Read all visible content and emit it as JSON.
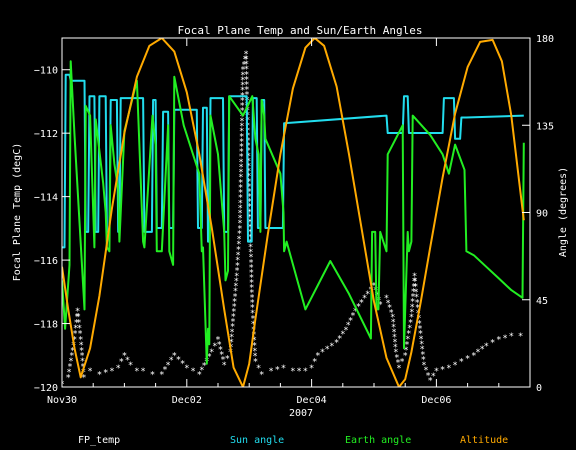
{
  "chart_data": {
    "type": "line",
    "title": "Focal Plane Temp and Sun/Earth Angles",
    "xlabel": "2007",
    "ylabel_left": "Focal Plane Temp (degC)",
    "ylabel_right": "Angle (degrees)",
    "xlim": [
      0,
      7.5
    ],
    "ylim_left": [
      -120,
      -109
    ],
    "ylim_right": [
      0,
      180
    ],
    "x_ticks": [
      {
        "value": 0,
        "label": "Nov30"
      },
      {
        "value": 2,
        "label": "Dec02"
      },
      {
        "value": 4,
        "label": "Dec04"
      },
      {
        "value": 6,
        "label": "Dec06"
      }
    ],
    "y_ticks_left": [
      -110,
      -112,
      -114,
      -116,
      -118,
      -120
    ],
    "y_ticks_right": [
      0,
      45,
      90,
      135,
      180
    ],
    "grid": false,
    "legend_placement": "bottom",
    "series": [
      {
        "name": "FP_temp",
        "axis": "left",
        "color": "#ffffff",
        "style": "points",
        "x": [
          0,
          0.1,
          0.2,
          0.25,
          0.3,
          0.35,
          0.45,
          0.6,
          0.8,
          0.9,
          1.0,
          1.1,
          1.2,
          1.3,
          1.45,
          1.6,
          1.8,
          2.0,
          2.2,
          2.4,
          2.5,
          2.6,
          2.7,
          2.8,
          2.85,
          2.9,
          2.95,
          3.0,
          3.05,
          3.1,
          3.2,
          3.35,
          3.55,
          3.7,
          3.9,
          4.0,
          4.1,
          4.25,
          4.4,
          4.55,
          4.7,
          4.85,
          5.0,
          5.1,
          5.2,
          5.3,
          5.35,
          5.4,
          5.5,
          5.6,
          5.65,
          5.7,
          5.8,
          5.9,
          6.0,
          6.2,
          6.4,
          6.6,
          6.8,
          7.0,
          7.2,
          7.35
        ],
        "y": [
          -119.9,
          -119.7,
          -118.5,
          -117.6,
          -118.5,
          -119.7,
          -119.5,
          -119.6,
          -119.5,
          -119.4,
          -119.0,
          -119.3,
          -119.5,
          -119.5,
          -119.6,
          -119.6,
          -119.0,
          -119.4,
          -119.6,
          -118.9,
          -118.5,
          -119.3,
          -118.9,
          -116.5,
          -115.0,
          -110.0,
          -109.5,
          -114.0,
          -117.5,
          -119.2,
          -119.6,
          -119.5,
          -119.4,
          -119.5,
          -119.5,
          -119.4,
          -119.0,
          -118.8,
          -118.6,
          -118.2,
          -117.6,
          -117.2,
          -116.8,
          -117.4,
          -117.2,
          -117.8,
          -118.9,
          -119.4,
          -119.0,
          -117.8,
          -116.5,
          -117.5,
          -119.3,
          -119.8,
          -119.5,
          -119.4,
          -119.2,
          -119.0,
          -118.7,
          -118.5,
          -118.4,
          -118.4
        ]
      },
      {
        "name": "Sun angle",
        "axis": "right",
        "color": "#22ddee",
        "style": "line",
        "x": [
          0,
          0.04,
          0.06,
          0.12,
          0.14,
          0.36,
          0.38,
          0.42,
          0.44,
          0.52,
          0.54,
          0.58,
          0.6,
          0.7,
          0.72,
          0.76,
          0.78,
          0.88,
          0.9,
          0.92,
          0.94,
          1.3,
          1.32,
          1.44,
          1.46,
          1.5,
          1.52,
          1.6,
          1.62,
          1.7,
          1.72,
          1.78,
          1.8,
          2.16,
          2.18,
          2.24,
          2.26,
          2.32,
          2.34,
          2.36,
          2.38,
          2.58,
          2.6,
          2.66,
          2.68,
          2.96,
          2.98,
          3.04,
          3.06,
          3.12,
          3.14,
          3.18,
          3.2,
          3.24,
          3.26,
          3.54,
          3.56,
          5.2,
          5.22,
          5.46,
          5.48,
          5.54,
          5.56,
          6.1,
          6.12,
          6.28,
          6.3,
          6.38,
          6.4,
          6.46,
          6.48,
          7.4
        ],
        "y": [
          72,
          72,
          161,
          161,
          158,
          158,
          80,
          80,
          150,
          150,
          80,
          80,
          150,
          150,
          80,
          80,
          148,
          148,
          80,
          80,
          149,
          149,
          80,
          80,
          148,
          148,
          82,
          82,
          142,
          142,
          82,
          82,
          143,
          143,
          82,
          82,
          144,
          144,
          75,
          75,
          149,
          149,
          80,
          80,
          150,
          150,
          75,
          75,
          149,
          149,
          82,
          82,
          148,
          148,
          82,
          82,
          136,
          140,
          131,
          131,
          150,
          150,
          131,
          131,
          149,
          149,
          128,
          128,
          139,
          139,
          139,
          140
        ]
      },
      {
        "name": "Earth angle",
        "axis": "right",
        "color": "#22ee22",
        "style": "line",
        "x": [
          0,
          0.05,
          0.12,
          0.14,
          0.2,
          0.36,
          0.38,
          0.45,
          0.52,
          0.54,
          0.66,
          0.7,
          0.72,
          0.76,
          0.78,
          0.84,
          0.9,
          0.92,
          1.0,
          1.2,
          1.3,
          1.32,
          1.45,
          1.5,
          1.52,
          1.6,
          1.7,
          1.72,
          1.78,
          1.8,
          1.95,
          2.1,
          2.2,
          2.24,
          2.26,
          2.32,
          2.34,
          2.36,
          2.38,
          2.5,
          2.6,
          2.62,
          2.66,
          2.68,
          2.9,
          3.05,
          3.1,
          3.15,
          3.18,
          3.2,
          3.24,
          3.26,
          3.5,
          3.55,
          3.56,
          3.6,
          3.9,
          4.3,
          4.6,
          4.95,
          4.97,
          5.02,
          5.04,
          5.07,
          5.1,
          5.2,
          5.22,
          5.46,
          5.48,
          5.54,
          5.56,
          5.6,
          5.62,
          5.9,
          6.1,
          6.2,
          6.3,
          6.45,
          6.48,
          6.6,
          6.8,
          7.0,
          7.2,
          7.38,
          7.4
        ],
        "y": [
          55,
          30,
          63,
          168,
          130,
          40,
          145,
          140,
          72,
          138,
          105,
          90,
          72,
          70,
          135,
          115,
          102,
          75,
          132,
          158,
          75,
          72,
          140,
          125,
          70,
          70,
          135,
          70,
          63,
          160,
          135,
          120,
          110,
          70,
          72,
          12,
          30,
          22,
          140,
          120,
          80,
          55,
          60,
          150,
          140,
          150,
          128,
          120,
          80,
          148,
          140,
          128,
          110,
          90,
          70,
          75,
          40,
          65,
          48,
          25,
          80,
          80,
          40,
          40,
          80,
          70,
          120,
          135,
          20,
          80,
          70,
          75,
          140,
          130,
          120,
          110,
          125,
          112,
          70,
          68,
          62,
          56,
          50,
          46,
          126
        ]
      },
      {
        "name": "Altitude",
        "axis": "right",
        "color": "#ffaa00",
        "style": "line",
        "x": [
          0,
          0.1,
          0.2,
          0.3,
          0.45,
          0.6,
          0.8,
          1.0,
          1.2,
          1.4,
          1.6,
          1.8,
          2.0,
          2.2,
          2.4,
          2.6,
          2.75,
          2.9,
          3.0,
          3.1,
          3.3,
          3.5,
          3.7,
          3.9,
          4.05,
          4.2,
          4.4,
          4.6,
          4.8,
          5.0,
          5.2,
          5.4,
          5.5,
          5.6,
          5.75,
          5.9,
          6.1,
          6.3,
          6.5,
          6.7,
          6.9,
          7.05,
          7.2,
          7.4
        ],
        "y": [
          62,
          40,
          20,
          5,
          20,
          47,
          92,
          131,
          160,
          176,
          180,
          173,
          152,
          120,
          82,
          40,
          10,
          0,
          12,
          35,
          79,
          120,
          154,
          175,
          180,
          176,
          155,
          120,
          82,
          44,
          15,
          0,
          4,
          18,
          44,
          72,
          108,
          141,
          165,
          178,
          179,
          168,
          140,
          86
        ]
      }
    ]
  }
}
